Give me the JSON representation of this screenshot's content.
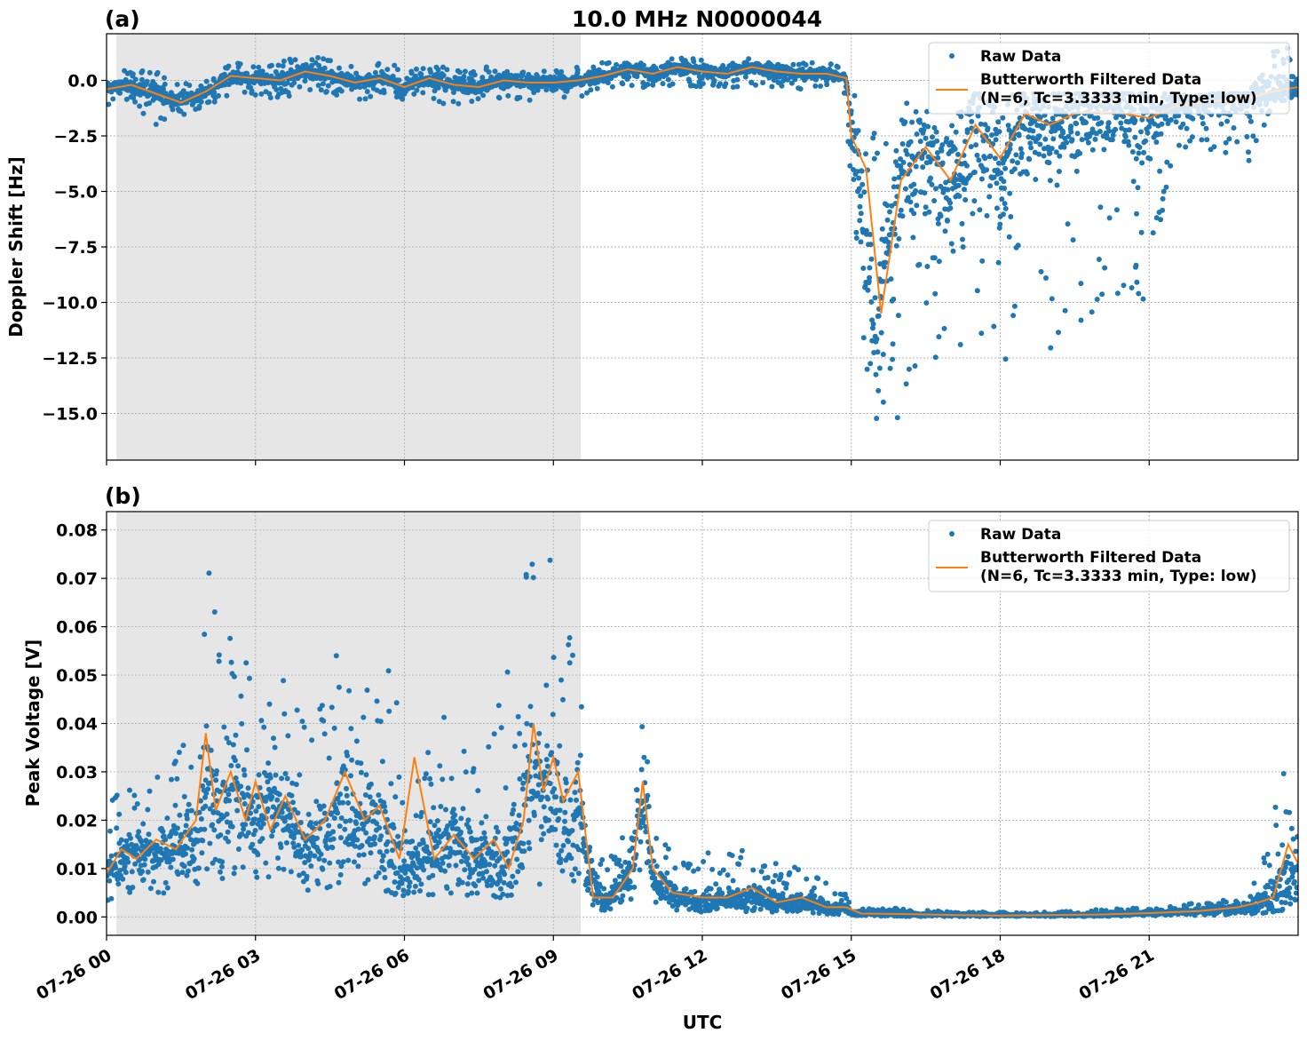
{
  "chart_data": [
    {
      "type": "scatter",
      "panel_label": "(a)",
      "title": "10.0 MHz N0000044",
      "ylabel": "Doppler Shift [Hz]",
      "xlabel": "",
      "xlim": [
        0,
        24
      ],
      "ylim": [
        -17.1,
        2.1
      ],
      "yticks": [
        0.0,
        -2.5,
        -5.0,
        -7.5,
        -10.0,
        -12.5,
        -15.0
      ],
      "ytick_labels": [
        "0.0",
        "−2.5",
        "−5.0",
        "−7.5",
        "−10.0",
        "−12.5",
        "−15.0"
      ],
      "xticks": [
        0,
        3,
        6,
        9,
        12,
        15,
        18,
        21
      ],
      "shaded_interval_hours": [
        0.2,
        9.55
      ],
      "grid": true,
      "legend_position": "top-right",
      "legend": [
        {
          "label": "Raw Data",
          "lines": [
            "Raw Data"
          ],
          "kind": "marker",
          "color": "#1f77b4"
        },
        {
          "label": "Butterworth Filtered Data (N=6, Tc=3.3333 min, Type: low)",
          "lines": [
            "Butterworth Filtered Data",
            "(N=6, Tc=3.3333 min, Type: low)"
          ],
          "kind": "line",
          "color": "#ff7f0e"
        }
      ],
      "series": [
        {
          "name": "Raw Data",
          "color": "#1f77b4",
          "x_hours": [
            0,
            0.5,
            1,
            1.5,
            2,
            2.5,
            3,
            3.5,
            4,
            4.5,
            5,
            5.5,
            6,
            6.5,
            7,
            7.5,
            8,
            8.5,
            9,
            9.5,
            10,
            10.5,
            11,
            11.5,
            12,
            12.5,
            13,
            13.5,
            14,
            14.5,
            14.9,
            15.0,
            15.5,
            16,
            16.5,
            17,
            17.5,
            18,
            18.5,
            19,
            19.5,
            20,
            20.5,
            21,
            21.5,
            22,
            22.5,
            23,
            23.5,
            24
          ],
          "y": [
            -0.4,
            -0.2,
            -0.6,
            -1.0,
            -0.5,
            0.2,
            0.1,
            0.0,
            0.4,
            0.2,
            -0.1,
            0.1,
            -0.3,
            0.1,
            -0.2,
            -0.3,
            0.0,
            -0.1,
            -0.1,
            0.0,
            0.2,
            0.5,
            0.3,
            0.6,
            0.4,
            0.3,
            0.6,
            0.4,
            0.3,
            0.3,
            0.1,
            -2.5,
            -11.0,
            -4.0,
            -3.5,
            -5.0,
            -2.0,
            -4.5,
            -1.5,
            -2.5,
            -1.8,
            -1.5,
            -1.5,
            -1.8,
            -1.2,
            -1.0,
            -0.9,
            -0.8,
            -0.5,
            -0.3
          ],
          "y_min": [
            -1.2,
            -1.0,
            -2.1,
            -1.6,
            -1.2,
            -0.6,
            -0.7,
            -1.0,
            -0.4,
            -0.6,
            -1.0,
            -0.6,
            -1.0,
            -0.8,
            -1.3,
            -1.0,
            -0.8,
            -1.0,
            -1.0,
            -0.8,
            -0.4,
            -0.2,
            -0.4,
            -0.2,
            -0.3,
            -0.4,
            -0.2,
            -0.3,
            -0.4,
            -0.4,
            -0.6,
            -12.0,
            -16.2,
            -15.3,
            -13.0,
            -15.1,
            -12.5,
            -13.4,
            -10.5,
            -12.4,
            -13.0,
            -10.5,
            -9.8,
            -10.4,
            -3.5,
            -3.0,
            -3.3,
            -3.8,
            -1.0,
            -0.8
          ],
          "y_max": [
            0.3,
            0.5,
            0.4,
            0.2,
            0.4,
            0.8,
            0.7,
            0.8,
            1.3,
            0.9,
            0.7,
            0.8,
            0.6,
            0.8,
            0.5,
            0.6,
            0.7,
            0.5,
            0.5,
            0.6,
            0.8,
            0.9,
            0.9,
            1.3,
            0.9,
            0.8,
            1.0,
            0.9,
            0.8,
            0.8,
            0.6,
            -0.5,
            -0.6,
            -0.6,
            -0.6,
            -0.6,
            -0.6,
            -0.6,
            -0.6,
            -0.6,
            -0.6,
            -0.6,
            -0.6,
            -0.6,
            -0.6,
            -0.6,
            -0.6,
            -0.6,
            1.5,
            1.5
          ]
        },
        {
          "name": "Butterworth Filtered Data (N=6, Tc=3.3333 min, Type: low)",
          "color": "#ff7f0e",
          "x_hours": [
            0,
            0.5,
            1,
            1.5,
            2,
            2.5,
            3,
            3.5,
            4,
            4.5,
            5,
            5.5,
            6,
            6.5,
            7,
            7.5,
            8,
            8.5,
            9,
            9.5,
            10,
            10.5,
            11,
            11.5,
            12,
            12.5,
            13,
            13.5,
            14,
            14.5,
            14.9,
            15.0,
            15.3,
            15.6,
            16,
            16.5,
            17,
            17.5,
            18,
            18.5,
            19,
            19.5,
            20,
            20.5,
            21,
            21.5,
            22,
            22.5,
            23,
            23.5,
            24
          ],
          "y": [
            -0.4,
            -0.2,
            -0.6,
            -1.0,
            -0.5,
            0.2,
            0.1,
            0.0,
            0.4,
            0.2,
            -0.1,
            0.1,
            -0.3,
            0.1,
            -0.2,
            -0.3,
            0.0,
            -0.1,
            -0.1,
            0.0,
            0.2,
            0.5,
            0.3,
            0.6,
            0.4,
            0.3,
            0.6,
            0.4,
            0.3,
            0.3,
            0.1,
            -2.5,
            -4.0,
            -10.5,
            -4.5,
            -3.0,
            -4.5,
            -2.0,
            -3.5,
            -1.5,
            -2.0,
            -1.5,
            -1.4,
            -1.5,
            -1.7,
            -1.2,
            -1.0,
            -0.9,
            -0.8,
            -0.5,
            -0.3
          ]
        }
      ]
    },
    {
      "type": "scatter",
      "panel_label": "(b)",
      "title": "",
      "ylabel": "Peak Voltage [V]",
      "xlabel": "UTC",
      "xlim": [
        0,
        24
      ],
      "ylim": [
        -0.0038,
        0.0838
      ],
      "yticks": [
        0.0,
        0.01,
        0.02,
        0.03,
        0.04,
        0.05,
        0.06,
        0.07,
        0.08
      ],
      "ytick_labels": [
        "0.00",
        "0.01",
        "0.02",
        "0.03",
        "0.04",
        "0.05",
        "0.06",
        "0.07",
        "0.08"
      ],
      "xticks": [
        0,
        3,
        6,
        9,
        12,
        15,
        18,
        21
      ],
      "xtick_labels": [
        "07-26 00",
        "07-26 03",
        "07-26 06",
        "07-26 09",
        "07-26 12",
        "07-26 15",
        "07-26 18",
        "07-26 21"
      ],
      "shaded_interval_hours": [
        0.2,
        9.55
      ],
      "grid": true,
      "legend_position": "top-right",
      "legend": [
        {
          "label": "Raw Data",
          "lines": [
            "Raw Data"
          ],
          "kind": "marker",
          "color": "#1f77b4"
        },
        {
          "label": "Butterworth Filtered Data (N=6, Tc=3.3333 min, Type: low)",
          "lines": [
            "Butterworth Filtered Data",
            "(N=6, Tc=3.3333 min, Type: low)"
          ],
          "kind": "line",
          "color": "#ff7f0e"
        }
      ],
      "series": [
        {
          "name": "Raw Data",
          "color": "#1f77b4",
          "x_hours": [
            0,
            0.5,
            1,
            1.5,
            1.9,
            2.0,
            2.3,
            2.6,
            3.0,
            3.3,
            3.7,
            4.0,
            4.5,
            4.8,
            5.3,
            5.7,
            6.0,
            6.5,
            7.0,
            7.5,
            8.0,
            8.3,
            8.6,
            8.9,
            9.2,
            9.5,
            9.7,
            10.0,
            10.5,
            10.8,
            11.0,
            11.5,
            12.0,
            12.5,
            13.0,
            13.5,
            14.0,
            14.5,
            14.9,
            15.0,
            16.0,
            17.0,
            18.0,
            19.0,
            20.0,
            21.0,
            22.0,
            23.0,
            23.5,
            24.0
          ],
          "y": [
            0.01,
            0.014,
            0.013,
            0.016,
            0.018,
            0.03,
            0.022,
            0.028,
            0.018,
            0.025,
            0.02,
            0.014,
            0.018,
            0.025,
            0.022,
            0.015,
            0.01,
            0.013,
            0.016,
            0.012,
            0.01,
            0.018,
            0.03,
            0.025,
            0.02,
            0.022,
            0.01,
            0.003,
            0.008,
            0.025,
            0.008,
            0.004,
            0.003,
            0.004,
            0.004,
            0.003,
            0.003,
            0.002,
            0.002,
            0.001,
            0.0005,
            0.0005,
            0.0004,
            0.0004,
            0.0005,
            0.0008,
            0.0012,
            0.002,
            0.005,
            0.011
          ],
          "y_min": [
            0.002,
            0.004,
            0.004,
            0.006,
            0.007,
            0.008,
            0.007,
            0.007,
            0.006,
            0.007,
            0.006,
            0.005,
            0.006,
            0.007,
            0.006,
            0.005,
            0.004,
            0.004,
            0.005,
            0.004,
            0.004,
            0.005,
            0.007,
            0.006,
            0.006,
            0.006,
            0.003,
            0.001,
            0.002,
            0.004,
            0.002,
            0.001,
            0.001,
            0.001,
            0.001,
            0.001,
            0.001,
            0.0005,
            0.0005,
            0.0002,
            0.0001,
            0.0001,
            0.0001,
            0.0001,
            0.0001,
            0.0002,
            0.0003,
            0.0005,
            0.001,
            0.002
          ],
          "y_max": [
            0.024,
            0.032,
            0.029,
            0.036,
            0.062,
            0.073,
            0.064,
            0.056,
            0.052,
            0.056,
            0.057,
            0.04,
            0.063,
            0.067,
            0.06,
            0.056,
            0.032,
            0.038,
            0.044,
            0.04,
            0.047,
            0.065,
            0.08,
            0.078,
            0.066,
            0.066,
            0.03,
            0.012,
            0.022,
            0.055,
            0.022,
            0.012,
            0.013,
            0.015,
            0.014,
            0.012,
            0.01,
            0.007,
            0.005,
            0.002,
            0.002,
            0.001,
            0.001,
            0.001,
            0.0015,
            0.002,
            0.003,
            0.005,
            0.024,
            0.038
          ]
        },
        {
          "name": "Butterworth Filtered Data (N=6, Tc=3.3333 min, Type: low)",
          "color": "#ff7f0e",
          "x_hours": [
            0,
            0.3,
            0.6,
            1.0,
            1.4,
            1.8,
            2.0,
            2.2,
            2.5,
            2.8,
            3.0,
            3.3,
            3.6,
            4.0,
            4.4,
            4.8,
            5.2,
            5.5,
            5.9,
            6.2,
            6.6,
            7.0,
            7.4,
            7.8,
            8.1,
            8.4,
            8.6,
            8.8,
            9.0,
            9.2,
            9.5,
            9.8,
            10.2,
            10.6,
            10.8,
            11.0,
            11.4,
            12.0,
            12.5,
            13.0,
            13.5,
            14.0,
            14.5,
            14.9,
            15.2,
            16.0,
            17.0,
            18.0,
            19.0,
            20.0,
            21.0,
            22.0,
            22.8,
            23.2,
            23.5,
            23.8,
            24.0
          ],
          "y": [
            0.009,
            0.014,
            0.012,
            0.016,
            0.014,
            0.02,
            0.038,
            0.022,
            0.03,
            0.02,
            0.028,
            0.018,
            0.025,
            0.016,
            0.02,
            0.03,
            0.02,
            0.023,
            0.012,
            0.033,
            0.012,
            0.017,
            0.012,
            0.016,
            0.01,
            0.02,
            0.04,
            0.026,
            0.033,
            0.024,
            0.03,
            0.004,
            0.004,
            0.01,
            0.028,
            0.01,
            0.005,
            0.004,
            0.004,
            0.006,
            0.003,
            0.004,
            0.002,
            0.002,
            0.0007,
            0.0006,
            0.0004,
            0.0003,
            0.0004,
            0.0005,
            0.0008,
            0.0012,
            0.002,
            0.003,
            0.004,
            0.015,
            0.011
          ]
        }
      ]
    }
  ]
}
